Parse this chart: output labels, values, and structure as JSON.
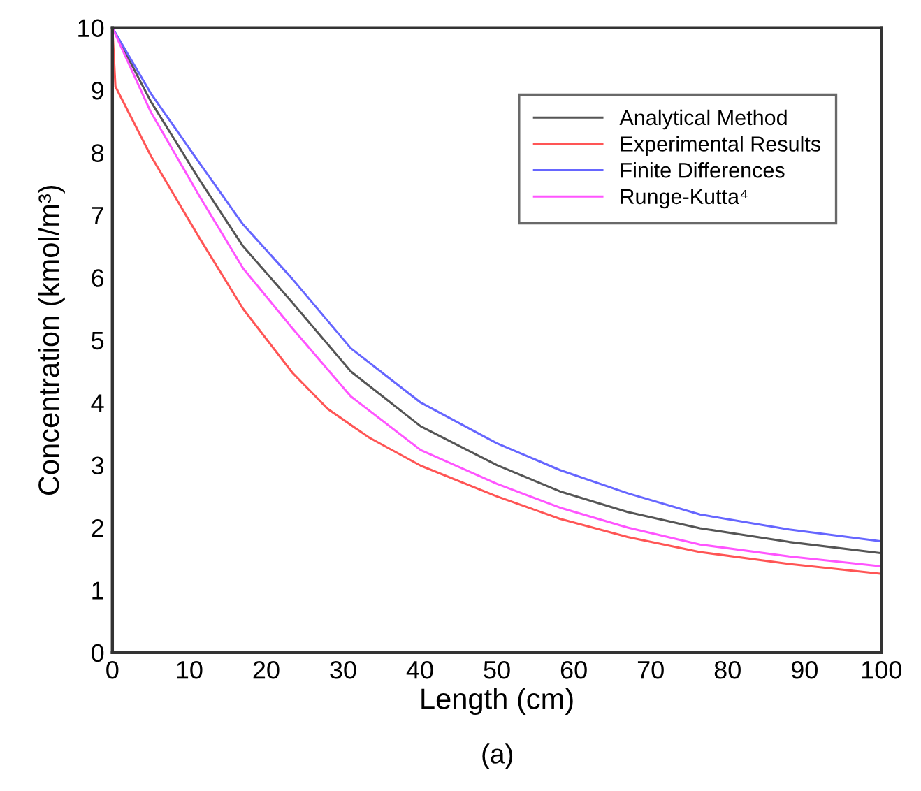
{
  "chart_data": {
    "type": "line",
    "xlabel": "Length (cm)",
    "ylabel": "Concentration (kmol/m³)",
    "annotations": [
      "(a)"
    ],
    "xlim": [
      0,
      100
    ],
    "ylim": [
      0,
      10
    ],
    "xticks": [
      0,
      10,
      20,
      30,
      40,
      50,
      60,
      70,
      80,
      90,
      100
    ],
    "yticks": [
      0,
      1,
      2,
      3,
      4,
      5,
      6,
      7,
      8,
      9,
      10
    ],
    "grid": false,
    "legend": "top right",
    "marker": "none",
    "line_style": "solid",
    "series": [
      {
        "name": "Analytical Method",
        "color": "#555555",
        "x": [
          0,
          5,
          11.3,
          17,
          23.4,
          31,
          40.1,
          50,
          58.2,
          67,
          76.4,
          88,
          100
        ],
        "values": [
          10,
          8.82,
          7.57,
          6.5,
          5.6,
          4.5,
          3.62,
          3.0,
          2.58,
          2.25,
          1.99,
          1.77,
          1.59
        ]
      },
      {
        "name": "Experimental Results",
        "color": "#ff5555",
        "x": [
          0,
          0.4,
          5,
          11.3,
          17,
          23.4,
          28,
          33.4,
          40.1,
          50,
          58.2,
          67,
          76.4,
          88,
          100
        ],
        "values": [
          10,
          9.06,
          7.95,
          6.64,
          5.5,
          4.48,
          3.9,
          3.44,
          2.99,
          2.5,
          2.14,
          1.85,
          1.61,
          1.42,
          1.26
        ]
      },
      {
        "name": "Finite Differences",
        "color": "#6666ff",
        "x": [
          0,
          5,
          11.3,
          17,
          23.4,
          31,
          40.1,
          50,
          58.2,
          67,
          76.4,
          88,
          100
        ],
        "values": [
          10,
          8.95,
          7.84,
          6.85,
          5.98,
          4.87,
          4.0,
          3.35,
          2.92,
          2.55,
          2.21,
          1.97,
          1.78
        ]
      },
      {
        "name": "Runge-Kutta⁴",
        "color": "#ff55ff",
        "x": [
          0,
          5,
          11.3,
          17,
          23.4,
          31,
          40.1,
          50,
          58.2,
          67,
          76.4,
          88,
          100
        ],
        "values": [
          10,
          8.65,
          7.31,
          6.15,
          5.19,
          4.1,
          3.24,
          2.7,
          2.32,
          2.0,
          1.73,
          1.54,
          1.38
        ]
      }
    ]
  }
}
